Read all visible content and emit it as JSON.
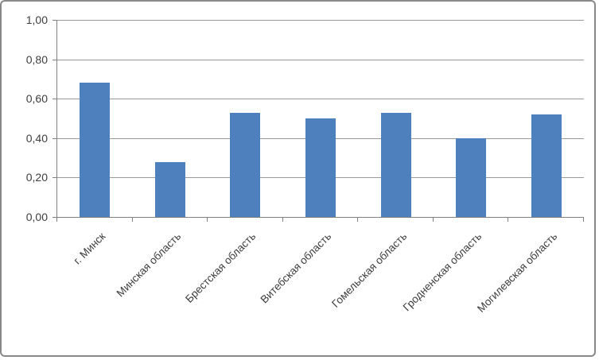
{
  "chart_data": {
    "type": "bar",
    "title": "",
    "xlabel": "",
    "ylabel": "",
    "categories": [
      "г. Минск",
      "Минская область",
      "Брестская область",
      "Витебская область",
      "Гомельская область",
      "Гродненская область",
      "Могилевская область"
    ],
    "values": [
      0.68,
      0.28,
      0.53,
      0.5,
      0.53,
      0.4,
      0.52
    ],
    "ylim": [
      0,
      1
    ],
    "ytick_step": 0.2,
    "ytick_labels": [
      "0,00",
      "0,20",
      "0,40",
      "0,60",
      "0,80",
      "1,00"
    ],
    "grid": true,
    "legend": false,
    "x_label_rotation_deg": 45,
    "colors": {
      "bar": "#4d80bd",
      "gridline": "#9a9a9a",
      "axis": "#808080",
      "text": "#3d3d3d",
      "frame_border": "#898989",
      "background": "#ffffff"
    }
  }
}
